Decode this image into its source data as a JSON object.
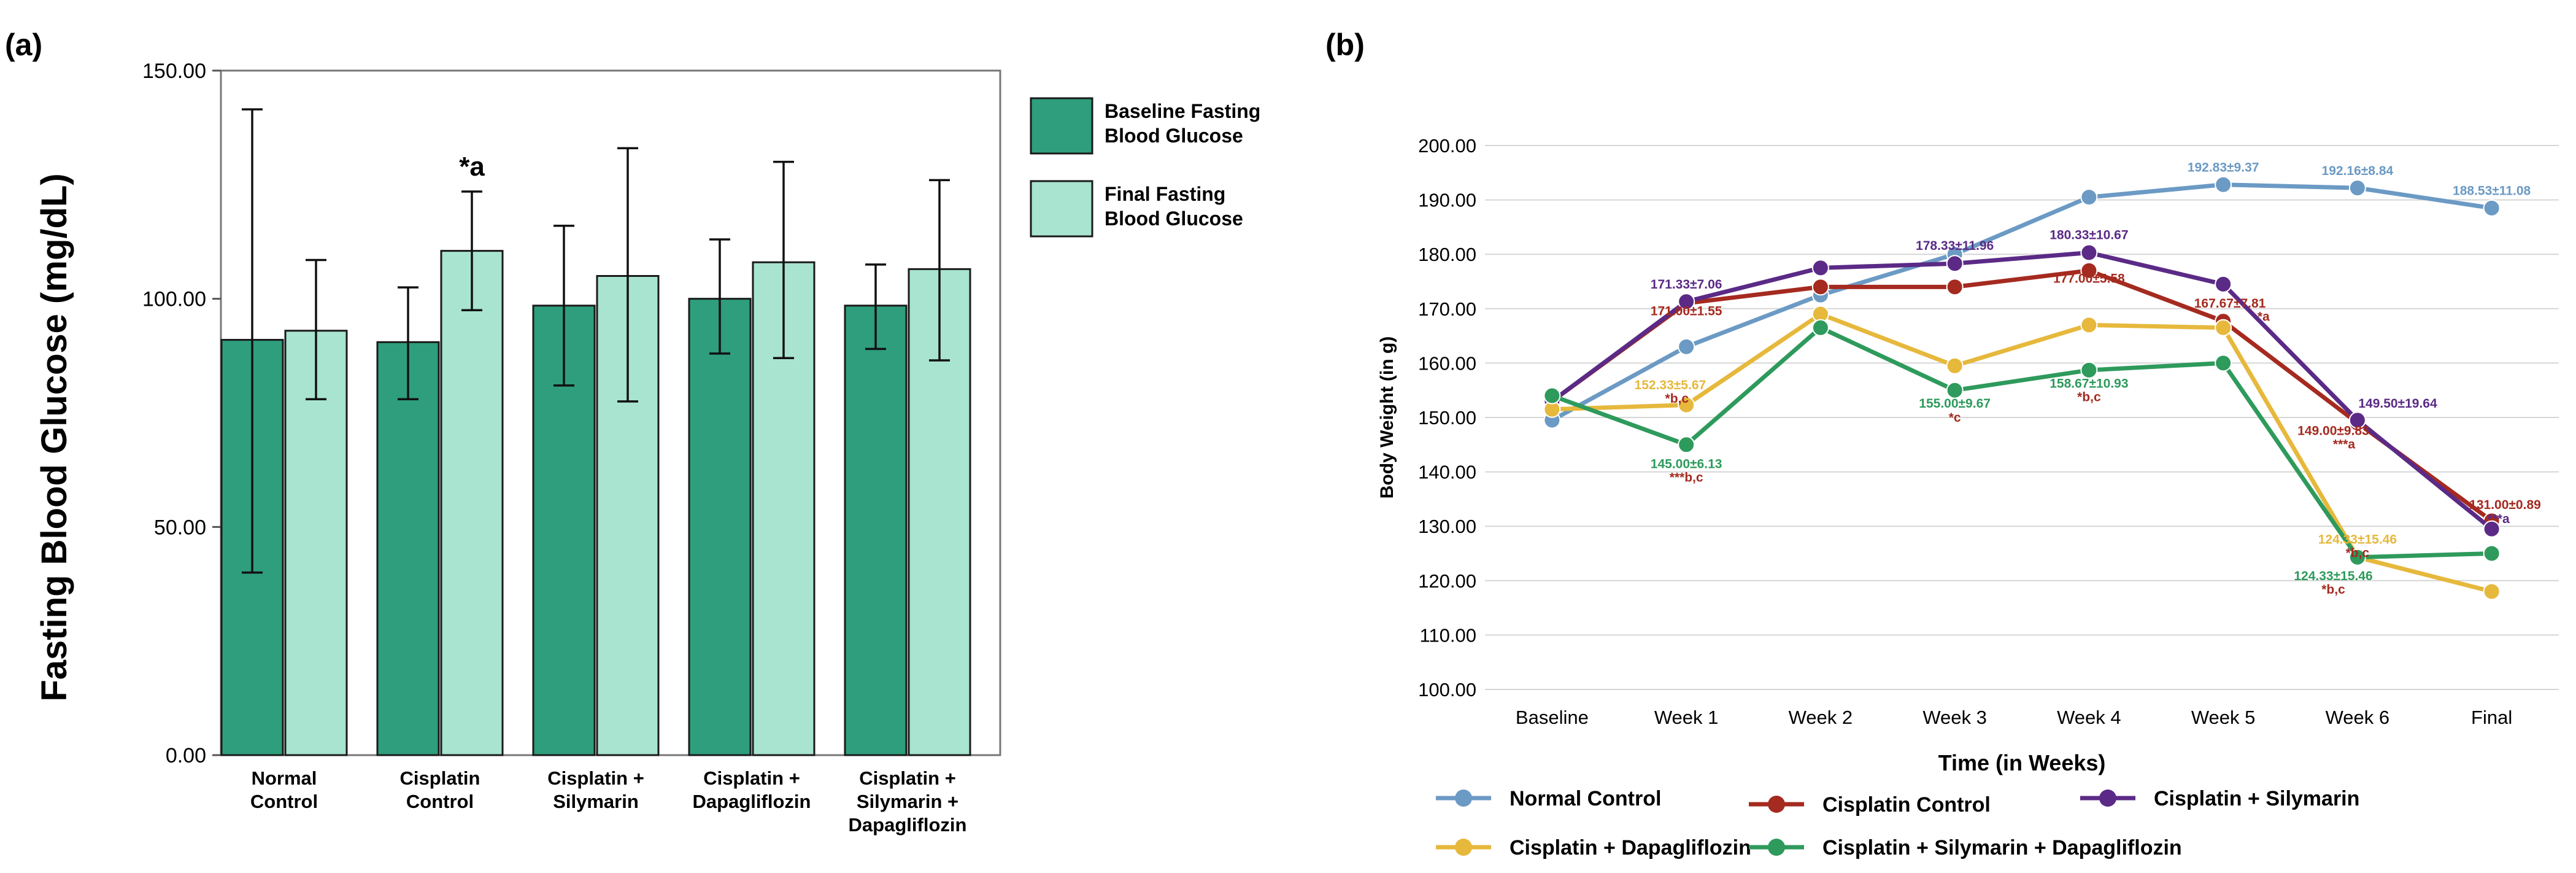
{
  "panels": {
    "a_label": "(a)",
    "b_label": "(b)"
  },
  "colors": {
    "baseline_bar": "#2e9e7c",
    "final_bar": "#a8e4cf",
    "normal_control": "#6b9ac4",
    "cisplatin_control": "#a52a1f",
    "cisplatin_silymarin": "#5b2a86",
    "cisplatin_dapagliflozin": "#e6b83c",
    "cisplatin_sily_dapa": "#2e9a5c"
  },
  "chart_data": [
    {
      "type": "bar",
      "ylabel": "Fasting Blood Glucose (mg/dL)",
      "ylim": [
        0,
        150
      ],
      "yticks": [
        "0.00",
        "50.00",
        "100.00",
        "150.00"
      ],
      "ytick_values": [
        0,
        50,
        100,
        150
      ],
      "categories": [
        [
          "Normal",
          "Control"
        ],
        [
          "Cisplatin",
          "Control"
        ],
        [
          "Cisplatin +",
          "Silymarin"
        ],
        [
          "Cisplatin +",
          "Dapagliflozin"
        ],
        [
          "Cisplatin +",
          "Silymarin +",
          "Dapagliflozin"
        ]
      ],
      "series": [
        {
          "name": [
            "Baseline Fasting",
            "Blood Glucose"
          ],
          "values": [
            91,
            90.5,
            98.5,
            100,
            98.5
          ],
          "err_low": [
            40,
            78,
            81,
            88,
            89
          ],
          "err_high": [
            141.5,
            102.5,
            116,
            113,
            107.5
          ]
        },
        {
          "name": [
            "Final Fasting",
            "Blood Glucose"
          ],
          "values": [
            93,
            110.5,
            105,
            108,
            106.5
          ],
          "err_low": [
            78,
            97.5,
            77.5,
            87,
            86.5
          ],
          "err_high": [
            108.5,
            123.5,
            133,
            130,
            126
          ]
        }
      ],
      "annotations": [
        {
          "text": "*a",
          "category": 1,
          "series": 1,
          "value": 127
        }
      ],
      "legend": "right"
    },
    {
      "type": "line",
      "xlabel": "Time (in Weeks)",
      "ylabel": "Body Weight (in g)",
      "ylim": [
        100,
        200
      ],
      "yticks": [
        "100.00",
        "110.00",
        "120.00",
        "130.00",
        "140.00",
        "150.00",
        "160.00",
        "170.00",
        "180.00",
        "190.00",
        "200.00"
      ],
      "ytick_values": [
        100,
        110,
        120,
        130,
        140,
        150,
        160,
        170,
        180,
        190,
        200
      ],
      "categories": [
        "Baseline",
        "Week 1",
        "Week 2",
        "Week 3",
        "Week 4",
        "Week 5",
        "Week 6",
        "Final"
      ],
      "series": [
        {
          "key": "normal_control",
          "name": "Normal Control",
          "values": [
            149.5,
            163,
            172.5,
            180,
            190.5,
            192.8,
            192.2,
            188.5
          ]
        },
        {
          "key": "cisplatin_control",
          "name": "Cisplatin Control",
          "values": [
            153,
            171,
            174,
            174,
            177,
            167.7,
            149,
            131
          ]
        },
        {
          "key": "cisplatin_silymarin",
          "name": "Cisplatin + Silymarin",
          "values": [
            153,
            171.3,
            177.5,
            178.3,
            180.3,
            174.5,
            149.5,
            129.5
          ]
        },
        {
          "key": "cisplatin_dapagliflozin",
          "name": "Cisplatin + Dapagliflozin",
          "values": [
            151.5,
            152.3,
            169,
            159.5,
            167,
            166.5,
            124.3,
            118
          ]
        },
        {
          "key": "cisplatin_sily_dapa",
          "name": "Cisplatin + Silymarin + Dapagliflozin",
          "values": [
            154,
            145,
            166.5,
            155,
            158.7,
            160,
            124.3,
            125
          ]
        }
      ],
      "annotations": [
        {
          "text": "171.33±7.06",
          "series": "cisplatin_silymarin",
          "cat": 1,
          "value": 173.7
        },
        {
          "text": "171.00±1.55",
          "series": "cisplatin_control",
          "cat": 1,
          "value": 168.8
        },
        {
          "text": "152.33±5.67",
          "series": "cisplatin_dapagliflozin",
          "cat": 0.88,
          "value": 155.2
        },
        {
          "text": "*b,c",
          "series": "cisplatin_control",
          "cat": 0.93,
          "value": 152.7
        },
        {
          "text": "145.00±6.13",
          "series": "cisplatin_sily_dapa",
          "cat": 1,
          "value": 140.7
        },
        {
          "text": "***b,c",
          "series": "cisplatin_control",
          "cat": 1,
          "value": 138.2
        },
        {
          "text": "178.33±11.96",
          "series": "cisplatin_silymarin",
          "cat": 3,
          "value": 180.8
        },
        {
          "text": "155.00±9.67",
          "series": "cisplatin_sily_dapa",
          "cat": 3,
          "value": 151.8
        },
        {
          "text": "*c",
          "series": "cisplatin_control",
          "cat": 3,
          "value": 149.2
        },
        {
          "text": "180.33±10.67",
          "series": "cisplatin_silymarin",
          "cat": 4,
          "value": 182.8
        },
        {
          "text": "177.00±5.58",
          "series": "cisplatin_control",
          "cat": 4,
          "value": 174.8
        },
        {
          "text": "158.67±10.93",
          "series": "cisplatin_sily_dapa",
          "cat": 4,
          "value": 155.5
        },
        {
          "text": "*b,c",
          "series": "cisplatin_control",
          "cat": 4,
          "value": 153
        },
        {
          "text": "192.83±9.37",
          "series": "normal_control",
          "cat": 5,
          "value": 195.2
        },
        {
          "text": "167.67±7.81",
          "series": "cisplatin_control",
          "cat": 5.05,
          "value": 170.2
        },
        {
          "text": "*a",
          "series": "cisplatin_control",
          "cat": 5.3,
          "value": 167.8
        },
        {
          "text": "192.16±8.84",
          "series": "normal_control",
          "cat": 6,
          "value": 194.6
        },
        {
          "text": "149.50±19.64",
          "series": "cisplatin_silymarin",
          "cat": 6.3,
          "value": 151.8
        },
        {
          "text": "149.00±9.83",
          "series": "cisplatin_control",
          "cat": 5.82,
          "value": 146.8
        },
        {
          "text": "***a",
          "series": "cisplatin_control",
          "cat": 5.9,
          "value": 144.3
        },
        {
          "text": "124.33±15.46",
          "series": "cisplatin_dapagliflozin",
          "cat": 6,
          "value": 126.8
        },
        {
          "text": "*b,c",
          "series": "cisplatin_control",
          "cat": 6,
          "value": 124.3
        },
        {
          "text": "124.33±15.46",
          "series": "cisplatin_sily_dapa",
          "cat": 5.82,
          "value": 120.1
        },
        {
          "text": "*b,c",
          "series": "cisplatin_control",
          "cat": 5.82,
          "value": 117.6
        },
        {
          "text": "188.53±11.08",
          "series": "normal_control",
          "cat": 7,
          "value": 190.9
        },
        {
          "text": "131.00±0.89",
          "series": "cisplatin_control",
          "cat": 7.1,
          "value": 133.2
        },
        {
          "text": "***a",
          "series": "cisplatin_silymarin",
          "cat": 7.05,
          "value": 130.6
        }
      ],
      "legend": "bottom"
    }
  ]
}
